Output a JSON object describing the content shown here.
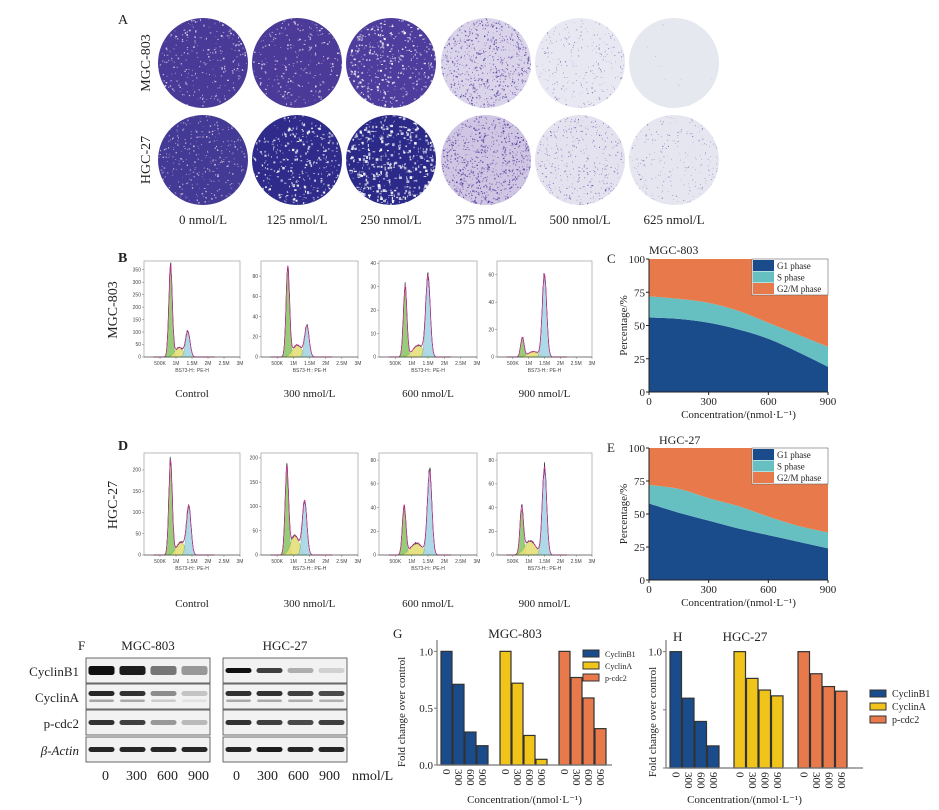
{
  "panelA": {
    "letter": "A",
    "rows": [
      "MGC-803",
      "HGC-27"
    ],
    "concentrations": [
      "0 nmol/L",
      "125 nmol/L",
      "250 nmol/L",
      "375 nmol/L",
      "500 nmol/L",
      "625 nmol/L"
    ]
  },
  "flow": {
    "xticks": [
      "500K",
      "1M",
      "1.5M",
      "2M",
      "2.5M",
      "3M"
    ],
    "xlabel": "BS73-H:: PE-H",
    "conditions": [
      "Control",
      "300 nmol/L",
      "600 nmol/L",
      "900 nmol/L"
    ],
    "colors": {
      "G1": "#8cc76a",
      "S": "#e5df78",
      "G2M": "#a6d7e6",
      "fit": "#d0309a",
      "data": "#222222"
    },
    "panels": [
      {
        "letter": "B",
        "row": "MGC-803",
        "histograms": [
          {
            "yticks": [
              0,
              50,
              100,
              150,
              200,
              250,
              300,
              350
            ],
            "ymax": 385,
            "G1": {
              "pos_M": 0.83,
              "count": 365
            },
            "S": {
              "pos_M": 1.1,
              "count": 38
            },
            "G2M": {
              "pos_M": 1.37,
              "count": 100
            }
          },
          {
            "yticks": [
              0,
              20,
              40,
              60,
              80
            ],
            "ymax": 95,
            "G1": {
              "pos_M": 0.83,
              "count": 89
            },
            "S": {
              "pos_M": 1.12,
              "count": 12
            },
            "G2M": {
              "pos_M": 1.42,
              "count": 30
            }
          },
          {
            "yticks": [
              0,
              10,
              20,
              30,
              40
            ],
            "ymax": 41,
            "G1": {
              "pos_M": 0.8,
              "count": 30
            },
            "S": {
              "pos_M": 1.2,
              "count": 5
            },
            "G2M": {
              "pos_M": 1.5,
              "count": 34
            }
          },
          {
            "yticks": [
              0,
              20,
              40,
              60
            ],
            "ymax": 70,
            "G1": {
              "pos_M": 0.8,
              "count": 14
            },
            "S": {
              "pos_M": 1.15,
              "count": 4
            },
            "G2M": {
              "pos_M": 1.5,
              "count": 60
            }
          }
        ]
      },
      {
        "letter": "D",
        "row": "HGC-27",
        "histograms": [
          {
            "yticks": [
              0,
              50,
              100,
              150,
              200
            ],
            "ymax": 240,
            "G1": {
              "pos_M": 0.83,
              "count": 222
            },
            "S": {
              "pos_M": 1.15,
              "count": 30
            },
            "G2M": {
              "pos_M": 1.4,
              "count": 112
            }
          },
          {
            "yticks": [
              0,
              50,
              100,
              150,
              200
            ],
            "ymax": 210,
            "G1": {
              "pos_M": 0.8,
              "count": 176
            },
            "S": {
              "pos_M": 1.05,
              "count": 40
            },
            "G2M": {
              "pos_M": 1.35,
              "count": 110
            }
          },
          {
            "yticks": [
              0,
              20,
              40,
              60,
              80
            ],
            "ymax": 86,
            "G1": {
              "pos_M": 0.77,
              "count": 41
            },
            "S": {
              "pos_M": 1.15,
              "count": 10
            },
            "G2M": {
              "pos_M": 1.55,
              "count": 70
            }
          },
          {
            "yticks": [
              0,
              20,
              40,
              60,
              80
            ],
            "ymax": 86,
            "G1": {
              "pos_M": 0.78,
              "count": 38
            },
            "S": {
              "pos_M": 1.05,
              "count": 12
            },
            "G2M": {
              "pos_M": 1.5,
              "count": 74
            }
          }
        ]
      }
    ]
  },
  "blot": {
    "letter": "F",
    "cells": [
      "MGC-803",
      "HGC-27"
    ],
    "proteins": [
      "CyclinB1",
      "CyclinA",
      "p-cdc2",
      "β-Actin"
    ],
    "lanes": [
      "0",
      "300",
      "600",
      "900"
    ],
    "unit": "nmol/L",
    "band_intensity": {
      "MGC-803": [
        [
          1.0,
          0.95,
          0.55,
          0.4
        ],
        [
          0.9,
          0.85,
          0.45,
          0.2
        ],
        [
          0.85,
          0.8,
          0.4,
          0.25
        ],
        [
          0.9,
          0.9,
          0.9,
          0.9
        ]
      ],
      "HGC-27": [
        [
          1.0,
          0.8,
          0.3,
          0.15
        ],
        [
          0.85,
          0.85,
          0.8,
          0.75
        ],
        [
          0.85,
          0.8,
          0.75,
          0.8
        ],
        [
          0.9,
          0.95,
          0.9,
          0.9
        ]
      ]
    }
  },
  "chart_data": [
    {
      "panel": "C",
      "type": "area",
      "title": "MGC-803",
      "xlabel": "Concentration/(nmol·L⁻¹)",
      "ylabel": "Percentage/%",
      "x": [
        0,
        150,
        300,
        450,
        600,
        750,
        900
      ],
      "xticks": [
        0,
        300,
        600,
        900
      ],
      "yticks": [
        0,
        25,
        50,
        75,
        100
      ],
      "xlim": [
        0,
        900
      ],
      "ylim": [
        0,
        100
      ],
      "legend_position": "top-right",
      "stacked": true,
      "series": [
        {
          "name": "G1 phase",
          "color": "#1a4c8c",
          "values": [
            56,
            55,
            52,
            47,
            40,
            30,
            19
          ]
        },
        {
          "name": "S phase",
          "color": "#66c0c2",
          "values": [
            16,
            15,
            15,
            14,
            12,
            13,
            15
          ]
        },
        {
          "name": "G2/M phase",
          "color": "#e8794a",
          "values": [
            28,
            30,
            33,
            39,
            48,
            57,
            66
          ]
        }
      ]
    },
    {
      "panel": "E",
      "type": "area",
      "title": "HGC-27",
      "xlabel": "Concentration/(nmol·L⁻¹)",
      "ylabel": "Percentage/%",
      "x": [
        0,
        150,
        300,
        450,
        600,
        750,
        900
      ],
      "xticks": [
        0,
        300,
        600,
        900
      ],
      "yticks": [
        0,
        25,
        50,
        75,
        100
      ],
      "xlim": [
        0,
        900
      ],
      "ylim": [
        0,
        100
      ],
      "legend_position": "top-right",
      "stacked": true,
      "series": [
        {
          "name": "G1 phase",
          "color": "#1a4c8c",
          "values": [
            58,
            51,
            45,
            39,
            34,
            29,
            24
          ]
        },
        {
          "name": "S phase",
          "color": "#66c0c2",
          "values": [
            14,
            18,
            17,
            17,
            14,
            12,
            12
          ]
        },
        {
          "name": "G2/M phase",
          "color": "#e8794a",
          "values": [
            28,
            31,
            38,
            44,
            52,
            59,
            64
          ]
        }
      ]
    },
    {
      "panel": "G",
      "type": "bar",
      "title": "MGC-803",
      "xlabel": "Concentration/(nmol·L⁻¹)",
      "ylabel": "Fold change over control",
      "categories": [
        "0",
        "300",
        "600",
        "900"
      ],
      "yticks": [
        "0.0",
        "0.5",
        "1.0"
      ],
      "ylim": [
        0,
        1.1
      ],
      "legend_position": "right",
      "series": [
        {
          "name": "CyclinB1",
          "color": "#1a4c8c",
          "values": [
            1.0,
            0.71,
            0.29,
            0.17
          ]
        },
        {
          "name": "CyclinA",
          "color": "#f0c419",
          "values": [
            1.0,
            0.72,
            0.26,
            0.05
          ]
        },
        {
          "name": "p-cdc2",
          "color": "#e8794a",
          "values": [
            1.0,
            0.77,
            0.59,
            0.32
          ]
        }
      ]
    },
    {
      "panel": "H",
      "type": "bar",
      "title": "HGC-27",
      "xlabel": "Concentration/(nmol·L⁻¹)",
      "ylabel": "Fold change over control",
      "categories": [
        "0",
        "300",
        "600",
        "900"
      ],
      "yticks": [
        "",
        "",
        "1.0"
      ],
      "ylim": [
        0,
        1.1
      ],
      "legend_position": "right",
      "series": [
        {
          "name": "CyclinB1",
          "color": "#1a4c8c",
          "values": [
            1.0,
            0.6,
            0.4,
            0.19
          ]
        },
        {
          "name": "CyclinA",
          "color": "#f0c419",
          "values": [
            1.0,
            0.77,
            0.67,
            0.62
          ]
        },
        {
          "name": "p-cdc2",
          "color": "#e8794a",
          "values": [
            1.0,
            0.81,
            0.7,
            0.66
          ]
        }
      ]
    }
  ]
}
